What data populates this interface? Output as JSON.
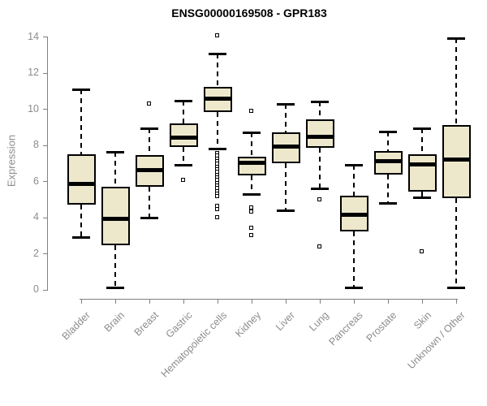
{
  "chart_data": {
    "type": "boxplot",
    "title": "ENSG00000169508 - GPR183",
    "ylabel": "Expression",
    "xlabel": "",
    "ylim": [
      0,
      14
    ],
    "yticks": [
      0,
      2,
      4,
      6,
      8,
      10,
      12,
      14
    ],
    "grid": "off",
    "legend": "none",
    "categories": [
      "Bladder",
      "Brain",
      "Breast",
      "Gastric",
      "Hematopoietic cells",
      "Kidney",
      "Liver",
      "Lung",
      "Pancreas",
      "Prostate",
      "Skin",
      "Unknown / Other"
    ],
    "series": [
      {
        "name": "Bladder",
        "whisker_low": 2.9,
        "q1": 4.7,
        "median": 5.85,
        "q3": 7.5,
        "whisker_high": 11.1,
        "outliers": []
      },
      {
        "name": "Brain",
        "whisker_low": 0.1,
        "q1": 2.45,
        "median": 3.9,
        "q3": 5.7,
        "whisker_high": 7.6,
        "outliers": []
      },
      {
        "name": "Breast",
        "whisker_low": 4.0,
        "q1": 5.7,
        "median": 6.6,
        "q3": 7.45,
        "whisker_high": 8.9,
        "outliers": [
          10.3
        ]
      },
      {
        "name": "Gastric",
        "whisker_low": 6.9,
        "q1": 7.9,
        "median": 8.4,
        "q3": 9.2,
        "whisker_high": 10.45,
        "outliers": [
          6.05
        ]
      },
      {
        "name": "Hematopoietic cells",
        "whisker_low": 7.8,
        "q1": 9.8,
        "median": 10.55,
        "q3": 11.2,
        "whisker_high": 13.05,
        "outliers": [
          14.05,
          7.55,
          7.4,
          7.25,
          7.1,
          6.95,
          6.8,
          6.65,
          6.5,
          6.35,
          6.2,
          6.05,
          5.9,
          5.75,
          5.6,
          5.45,
          5.3,
          5.15,
          4.65,
          4.45,
          4.0
        ]
      },
      {
        "name": "Kidney",
        "whisker_low": 5.3,
        "q1": 6.3,
        "median": 7.0,
        "q3": 7.35,
        "whisker_high": 8.7,
        "outliers": [
          9.9,
          4.55,
          4.3,
          3.4,
          3.0
        ]
      },
      {
        "name": "Liver",
        "whisker_low": 4.4,
        "q1": 7.0,
        "median": 7.9,
        "q3": 8.7,
        "whisker_high": 10.25,
        "outliers": []
      },
      {
        "name": "Lung",
        "whisker_low": 5.6,
        "q1": 7.85,
        "median": 8.45,
        "q3": 9.4,
        "whisker_high": 10.4,
        "outliers": [
          5.0,
          2.4
        ]
      },
      {
        "name": "Pancreas",
        "whisker_low": 0.1,
        "q1": 3.2,
        "median": 4.15,
        "q3": 5.2,
        "whisker_high": 6.9,
        "outliers": []
      },
      {
        "name": "Prostate",
        "whisker_low": 4.8,
        "q1": 6.35,
        "median": 7.1,
        "q3": 7.65,
        "whisker_high": 8.75,
        "outliers": []
      },
      {
        "name": "Skin",
        "whisker_low": 5.1,
        "q1": 5.4,
        "median": 6.9,
        "q3": 7.5,
        "whisker_high": 8.9,
        "outliers": [
          2.1
        ]
      },
      {
        "name": "Unknown / Other",
        "whisker_low": 0.1,
        "q1": 5.05,
        "median": 7.2,
        "q3": 9.1,
        "whisker_high": 13.9,
        "outliers": []
      }
    ],
    "colors": {
      "box_fill": "#EDE8CC",
      "box_border": "#000000",
      "median": "#000000",
      "whisker": "#000000",
      "axis": "#808080",
      "tick_text": "#8C8C8C",
      "title_text": "#000000",
      "background": "#FFFFFF"
    }
  }
}
